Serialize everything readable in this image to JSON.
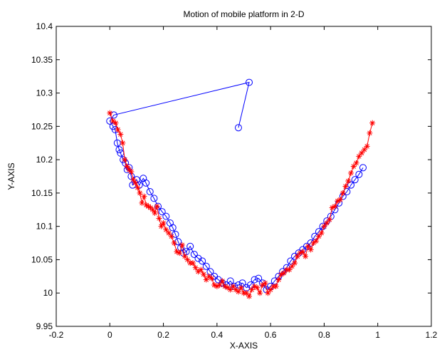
{
  "chart_data": {
    "type": "line",
    "title": "Motion of mobile platform in 2-D",
    "xlabel": "X-AXIS",
    "ylabel": "Y-AXIS",
    "xlim": [
      -0.2,
      1.2
    ],
    "ylim": [
      9.95,
      10.4
    ],
    "xticks": [
      -0.2,
      0,
      0.2,
      0.4,
      0.6,
      0.8,
      1,
      1.2
    ],
    "yticks": [
      9.95,
      10,
      10.05,
      10.1,
      10.15,
      10.2,
      10.25,
      10.3,
      10.35,
      10.4
    ],
    "xtick_labels": [
      "-0.2",
      "0",
      "0.2",
      "0.4",
      "0.6",
      "0.8",
      "1",
      "1.2"
    ],
    "ytick_labels": [
      "9.95",
      "10",
      "10.05",
      "10.1",
      "10.15",
      "10.2",
      "10.25",
      "10.3",
      "10.35",
      "10.4"
    ],
    "grid": false,
    "colors": {
      "series_1": "#0000ff",
      "series_2": "#ff0000",
      "axes": "#000000"
    },
    "series": [
      {
        "marker": "circle",
        "color": "#0000ff",
        "x": [
          0.48,
          0.52,
          0.015,
          0.0,
          0.012,
          0.02,
          0.028,
          0.035,
          0.04,
          0.05,
          0.058,
          0.065,
          0.072,
          0.08,
          0.085,
          0.1,
          0.11,
          0.125,
          0.135,
          0.15,
          0.165,
          0.18,
          0.195,
          0.21,
          0.225,
          0.235,
          0.245,
          0.255,
          0.265,
          0.275,
          0.285,
          0.3,
          0.315,
          0.33,
          0.345,
          0.36,
          0.375,
          0.39,
          0.405,
          0.42,
          0.435,
          0.45,
          0.465,
          0.48,
          0.495,
          0.51,
          0.525,
          0.54,
          0.555,
          0.57,
          0.585,
          0.6,
          0.615,
          0.63,
          0.645,
          0.66,
          0.675,
          0.69,
          0.705,
          0.72,
          0.735,
          0.75,
          0.765,
          0.78,
          0.795,
          0.81,
          0.825,
          0.84,
          0.855,
          0.87,
          0.885,
          0.9,
          0.915,
          0.93,
          0.945
        ],
        "y": [
          10.248,
          10.316,
          10.267,
          10.258,
          10.25,
          10.245,
          10.225,
          10.215,
          10.21,
          10.2,
          10.195,
          10.185,
          10.188,
          10.175,
          10.162,
          10.17,
          10.162,
          10.172,
          10.165,
          10.152,
          10.142,
          10.13,
          10.122,
          10.115,
          10.105,
          10.098,
          10.088,
          10.077,
          10.068,
          10.06,
          10.062,
          10.07,
          10.058,
          10.052,
          10.048,
          10.04,
          10.032,
          10.025,
          10.02,
          10.015,
          10.012,
          10.018,
          10.01,
          10.012,
          10.015,
          10.008,
          10.012,
          10.02,
          10.022,
          10.015,
          10.005,
          10.01,
          10.018,
          10.025,
          10.032,
          10.038,
          10.048,
          10.055,
          10.06,
          10.065,
          10.07,
          10.075,
          10.085,
          10.092,
          10.1,
          10.108,
          10.115,
          10.125,
          10.135,
          10.145,
          10.152,
          10.162,
          10.17,
          10.178,
          10.188
        ]
      },
      {
        "marker": "star",
        "color": "#ff0000",
        "x": [
          0.0,
          0.012,
          0.022,
          0.03,
          0.04,
          0.048,
          0.056,
          0.064,
          0.072,
          0.08,
          0.088,
          0.096,
          0.104,
          0.112,
          0.12,
          0.128,
          0.136,
          0.144,
          0.152,
          0.16,
          0.168,
          0.176,
          0.184,
          0.192,
          0.2,
          0.21,
          0.22,
          0.23,
          0.24,
          0.25,
          0.26,
          0.27,
          0.28,
          0.29,
          0.3,
          0.31,
          0.32,
          0.33,
          0.34,
          0.35,
          0.36,
          0.37,
          0.38,
          0.39,
          0.4,
          0.41,
          0.42,
          0.43,
          0.44,
          0.45,
          0.46,
          0.47,
          0.48,
          0.49,
          0.5,
          0.51,
          0.52,
          0.53,
          0.54,
          0.55,
          0.56,
          0.57,
          0.58,
          0.59,
          0.6,
          0.61,
          0.62,
          0.63,
          0.64,
          0.65,
          0.66,
          0.67,
          0.68,
          0.69,
          0.7,
          0.71,
          0.72,
          0.73,
          0.74,
          0.75,
          0.76,
          0.77,
          0.78,
          0.79,
          0.8,
          0.81,
          0.82,
          0.83,
          0.84,
          0.85,
          0.86,
          0.87,
          0.88,
          0.89,
          0.9,
          0.91,
          0.92,
          0.93,
          0.94,
          0.95,
          0.96,
          0.97,
          0.98
        ],
        "y": [
          10.27,
          10.258,
          10.255,
          10.245,
          10.238,
          10.225,
          10.2,
          10.19,
          10.185,
          10.182,
          10.17,
          10.165,
          10.158,
          10.15,
          10.135,
          10.145,
          10.132,
          10.13,
          10.128,
          10.125,
          10.12,
          10.13,
          10.112,
          10.1,
          10.105,
          10.095,
          10.09,
          10.085,
          10.075,
          10.062,
          10.06,
          10.072,
          10.055,
          10.05,
          10.045,
          10.045,
          10.038,
          10.032,
          10.035,
          10.028,
          10.02,
          10.025,
          10.022,
          10.012,
          10.01,
          10.012,
          10.018,
          10.01,
          10.008,
          10.005,
          10.01,
          10.005,
          10.002,
          10.008,
          10.0,
          10.0,
          9.995,
          10.005,
          10.01,
          10.008,
          10.0,
          10.012,
          10.015,
          10.0,
          10.005,
          10.01,
          10.01,
          10.02,
          10.028,
          10.03,
          10.035,
          10.035,
          10.04,
          10.045,
          10.055,
          10.06,
          10.062,
          10.055,
          10.07,
          10.065,
          10.075,
          10.078,
          10.085,
          10.09,
          10.1,
          10.105,
          10.11,
          10.128,
          10.13,
          10.138,
          10.14,
          10.15,
          10.16,
          10.168,
          10.18,
          10.19,
          10.195,
          10.205,
          10.21,
          10.215,
          10.22,
          10.24,
          10.255
        ]
      }
    ]
  }
}
